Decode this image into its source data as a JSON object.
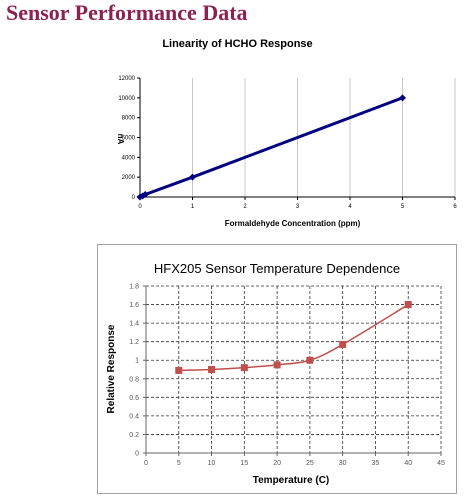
{
  "page": {
    "title": "Sensor Performance Data"
  },
  "chart_data": [
    {
      "type": "line",
      "title": "Linearity of HCHO Response",
      "xlabel": "Formaldehyde Concentration (ppm)",
      "ylabel": "nA",
      "xlim": [
        0,
        6
      ],
      "ylim": [
        0,
        12000
      ],
      "x_ticks": [
        "0",
        "1",
        "2",
        "3",
        "4",
        "5",
        "6"
      ],
      "y_ticks": [
        "0",
        "2000",
        "4000",
        "6000",
        "8000",
        "10000",
        "12000"
      ],
      "grid": "vertical",
      "series": [
        {
          "x": [
            0,
            0.05,
            0.1,
            1,
            5
          ],
          "values": [
            0,
            100,
            250,
            2000,
            10000
          ],
          "color": "#000080"
        }
      ]
    },
    {
      "type": "line",
      "title": "HFX205 Sensor Temperature Dependence",
      "xlabel": "Temperature  (C)",
      "ylabel": "Relative Response",
      "xlim": [
        0,
        45
      ],
      "ylim": [
        0,
        1.8
      ],
      "x_ticks": [
        "0",
        "5",
        "10",
        "15",
        "20",
        "25",
        "30",
        "35",
        "40",
        "45"
      ],
      "y_ticks": [
        "0",
        "0.2",
        "0.4",
        "0.6",
        "0.8",
        "1",
        "1.2",
        "1.4",
        "1.6",
        "1.8"
      ],
      "grid": "dashed",
      "series": [
        {
          "x": [
            5,
            10,
            15,
            20,
            25,
            30,
            40
          ],
          "values": [
            0.89,
            0.9,
            0.92,
            0.95,
            1.0,
            1.17,
            1.6
          ],
          "color": "#c0504d"
        }
      ]
    }
  ]
}
